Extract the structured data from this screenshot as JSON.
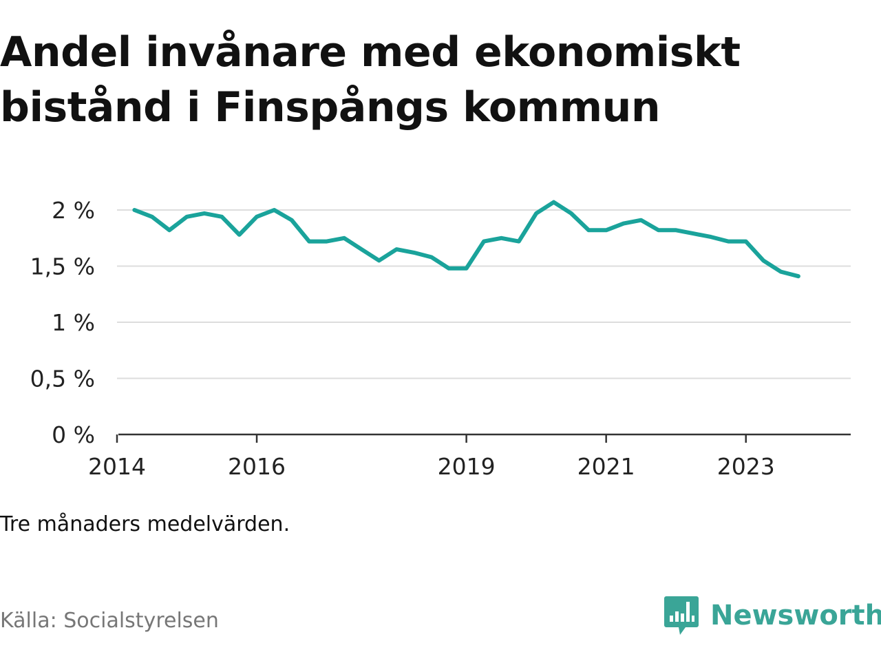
{
  "title": "Andel invånare med ekonomiskt bistånd i Finspångs kommun",
  "note": "Tre månaders medelvärden.",
  "source": "Källa: Socialstyrelsen",
  "brand": {
    "name": "Newsworthy",
    "color": "#3aa597"
  },
  "colors": {
    "line": "#1aa39b",
    "grid": "#dddddd",
    "axis": "#333333"
  },
  "chart_data": {
    "type": "line",
    "title": "Andel invånare med ekonomiskt bistånd i Finspångs kommun",
    "xlabel": "",
    "ylabel": "",
    "ylim": [
      0,
      2
    ],
    "y_ticks": [
      {
        "value": 0,
        "label": "0 %"
      },
      {
        "value": 0.5,
        "label": "0,5 %"
      },
      {
        "value": 1,
        "label": "1 %"
      },
      {
        "value": 1.5,
        "label": "1,5 %"
      },
      {
        "value": 2,
        "label": "2 %"
      }
    ],
    "x_ticks": [
      {
        "value": 2014,
        "label": "2014"
      },
      {
        "value": 2016,
        "label": "2016"
      },
      {
        "value": 2019,
        "label": "2019"
      },
      {
        "value": 2021,
        "label": "2021"
      },
      {
        "value": 2023,
        "label": "2023"
      }
    ],
    "x_range": [
      2014,
      2024.5
    ],
    "grid": true,
    "legend": "none",
    "series": [
      {
        "x": [
          2014.25,
          2014.5,
          2014.75,
          2015.0,
          2015.25,
          2015.5,
          2015.75,
          2016.0,
          2016.25,
          2016.5,
          2016.75,
          2017.0,
          2017.25,
          2017.5,
          2017.75,
          2018.0,
          2018.25,
          2018.5,
          2018.75,
          2019.0,
          2019.25,
          2019.5,
          2019.75,
          2020.0,
          2020.25,
          2020.5,
          2020.75,
          2021.0,
          2021.25,
          2021.5,
          2021.75,
          2022.0,
          2022.25,
          2022.5,
          2022.75,
          2023.0,
          2023.25,
          2023.5,
          2023.75
        ],
        "y": [
          2.0,
          1.94,
          1.82,
          1.94,
          1.97,
          1.94,
          1.78,
          1.94,
          2.0,
          1.91,
          1.72,
          1.72,
          1.75,
          1.65,
          1.55,
          1.65,
          1.62,
          1.58,
          1.48,
          1.48,
          1.72,
          1.75,
          1.72,
          1.97,
          2.07,
          1.97,
          1.82,
          1.82,
          1.88,
          1.91,
          1.82,
          1.82,
          1.79,
          1.76,
          1.72,
          1.72,
          1.55,
          1.45,
          1.41
        ]
      }
    ]
  }
}
